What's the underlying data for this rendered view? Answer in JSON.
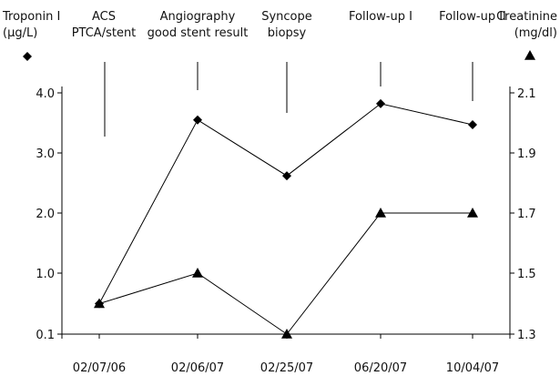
{
  "chart_data": {
    "type": "line",
    "left_axis": {
      "label": [
        "Troponin I",
        "(µg/L)"
      ],
      "ticks": [
        {
          "v": 0.1,
          "t": "0.1"
        },
        {
          "v": 1.0,
          "t": "1.0"
        },
        {
          "v": 2.0,
          "t": "2.0"
        },
        {
          "v": 3.0,
          "t": "3.0"
        },
        {
          "v": 4.0,
          "t": "4.0"
        }
      ],
      "legend_symbol": "diamond"
    },
    "right_axis": {
      "label": [
        "Creatinine",
        "(mg/dl)"
      ],
      "ticks": [
        {
          "v": 1.3,
          "t": "1.3"
        },
        {
          "v": 1.5,
          "t": "1.5"
        },
        {
          "v": 1.7,
          "t": "1.7"
        },
        {
          "v": 1.9,
          "t": "1.9"
        },
        {
          "v": 2.1,
          "t": "2.1"
        }
      ],
      "legend_symbol": "triangle"
    },
    "categories": [
      "02/07/06",
      "02/06/07",
      "02/25/07",
      "06/20/07",
      "10/04/07"
    ],
    "events": [
      {
        "label": [
          "ACS",
          "PTCA/stent"
        ]
      },
      {
        "label": [
          "Angiography",
          "good stent result"
        ]
      },
      {
        "label": [
          "Syncope",
          "biopsy"
        ]
      },
      {
        "label": [
          "Follow-up I"
        ]
      },
      {
        "label": [
          "Follow-up II"
        ]
      }
    ],
    "series": [
      {
        "axis": "left",
        "marker": "diamond",
        "values": [
          0.55,
          3.55,
          2.62,
          3.82,
          3.47
        ]
      },
      {
        "axis": "right",
        "marker": "triangle",
        "values": [
          1.4,
          1.5,
          1.3,
          1.7,
          1.7
        ]
      }
    ]
  }
}
